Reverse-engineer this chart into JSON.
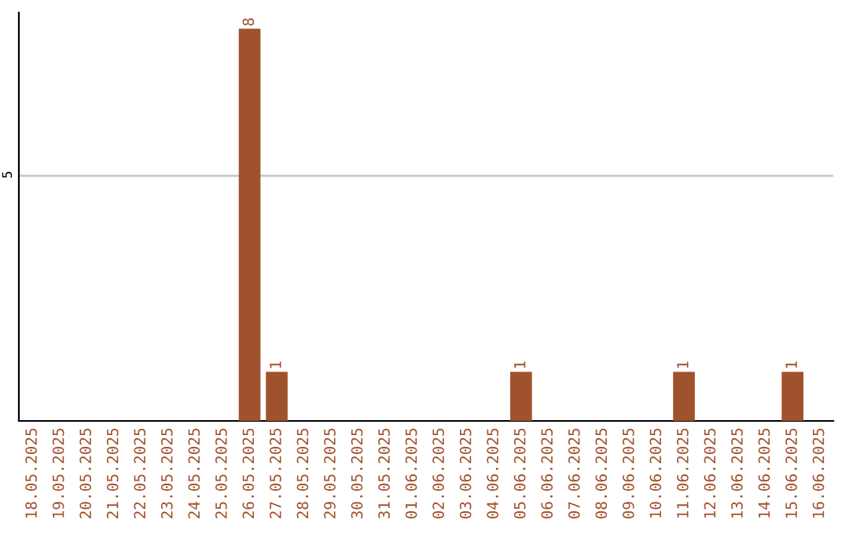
{
  "chart_data": {
    "type": "bar",
    "categories": [
      "18.05.2025",
      "19.05.2025",
      "20.05.2025",
      "21.05.2025",
      "22.05.2025",
      "23.05.2025",
      "24.05.2025",
      "25.05.2025",
      "26.05.2025",
      "27.05.2025",
      "28.05.2025",
      "29.05.2025",
      "30.05.2025",
      "31.05.2025",
      "01.06.2025",
      "02.06.2025",
      "03.06.2025",
      "04.06.2025",
      "05.06.2025",
      "06.06.2025",
      "07.06.2025",
      "08.06.2025",
      "09.06.2025",
      "10.06.2025",
      "11.06.2025",
      "12.06.2025",
      "13.06.2025",
      "14.06.2025",
      "15.06.2025",
      "16.06.2025"
    ],
    "values": [
      0,
      0,
      0,
      0,
      0,
      0,
      0,
      0,
      8,
      1,
      0,
      0,
      0,
      0,
      0,
      0,
      0,
      0,
      1,
      0,
      0,
      0,
      0,
      0,
      1,
      0,
      0,
      0,
      1,
      0
    ],
    "value_labels": [
      null,
      null,
      null,
      null,
      null,
      null,
      null,
      null,
      "8",
      "1",
      null,
      null,
      null,
      null,
      null,
      null,
      null,
      null,
      "1",
      null,
      null,
      null,
      null,
      null,
      "1",
      null,
      null,
      null,
      "1",
      null
    ],
    "color": "#a0522d",
    "ylim": [
      0,
      8.33
    ],
    "yticks": [
      5
    ],
    "grid": "y",
    "legend": false
  }
}
